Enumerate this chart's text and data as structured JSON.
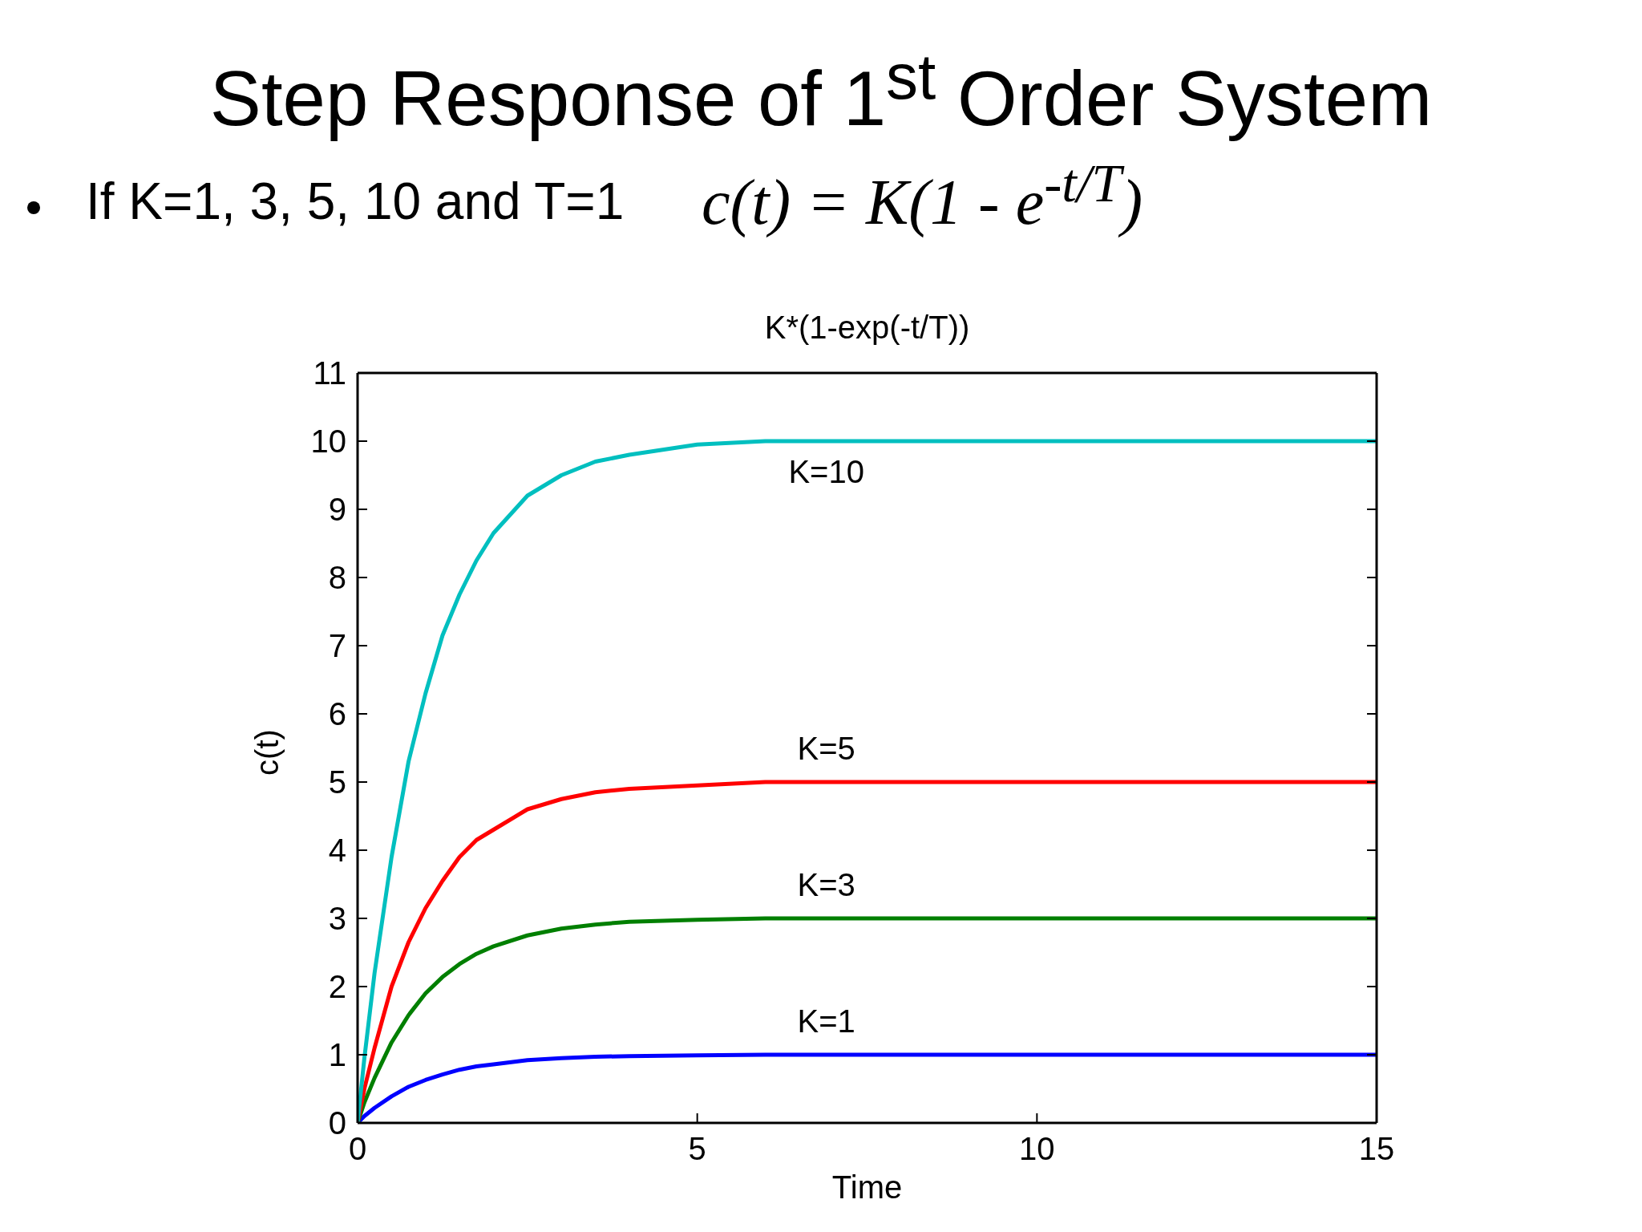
{
  "chart_data": {
    "type": "line",
    "title": "Step Response of 1$^{st}$ Order System",
    "subtitle": "K*(1-exp(-t/T))",
    "xlabel": "Time",
    "ylabel": "c(t)",
    "annotations": [
      "If K=1, 3, 5, 10 and T=1",
      "c(t) = K(1 - e$^{-t/T}$)"
    ],
    "x": [
      0,
      0.1,
      0.25,
      0.5,
      0.75,
      1,
      1.25,
      1.5,
      1.75,
      2,
      2.5,
      3,
      3.5,
      4,
      5,
      6,
      8,
      10,
      15
    ],
    "series": [
      {
        "name": "K=1",
        "color": "#0000ff",
        "values": [
          0,
          0.1,
          0.22,
          0.39,
          0.53,
          0.63,
          0.71,
          0.78,
          0.83,
          0.86,
          0.92,
          0.95,
          0.97,
          0.98,
          0.99,
          1,
          1,
          1,
          1
        ]
      },
      {
        "name": "K=3",
        "color": "#007f00",
        "values": [
          0,
          0.3,
          0.66,
          1.18,
          1.58,
          1.9,
          2.14,
          2.33,
          2.48,
          2.59,
          2.75,
          2.85,
          2.91,
          2.95,
          2.98,
          3,
          3,
          3,
          3
        ]
      },
      {
        "name": "K=5",
        "color": "#ff0000",
        "values": [
          0,
          0.5,
          1.1,
          2.0,
          2.65,
          3.15,
          3.55,
          3.9,
          4.15,
          4.3,
          4.6,
          4.75,
          4.85,
          4.9,
          4.95,
          5,
          5,
          5,
          5
        ]
      },
      {
        "name": "K=10",
        "color": "#00bfbf",
        "values": [
          0,
          0.95,
          2.2,
          3.9,
          5.3,
          6.3,
          7.15,
          7.75,
          8.25,
          8.65,
          9.2,
          9.5,
          9.7,
          9.8,
          9.95,
          10,
          10,
          10,
          10
        ]
      }
    ],
    "xlim": [
      0,
      15
    ],
    "xticks": [
      0,
      5,
      10,
      15
    ],
    "ylim": [
      0,
      11
    ],
    "yticks": [
      0,
      1,
      2,
      3,
      4,
      5,
      6,
      7,
      8,
      9,
      10,
      11
    ],
    "line_style": "solid"
  }
}
